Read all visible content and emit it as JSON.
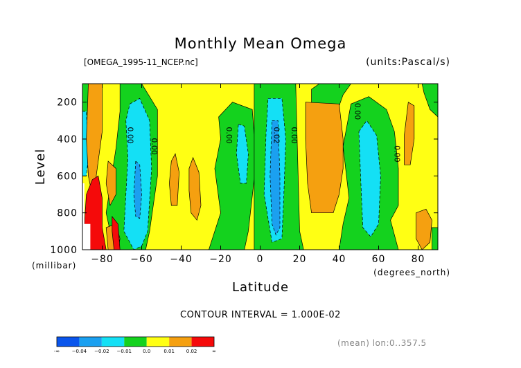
{
  "chart_data": {
    "type": "heatmap",
    "title": "Monthly Mean Omega",
    "file_label": "[OMEGA_1995-11_NCEP.nc]",
    "units_label": "(units:Pascal/s)",
    "xlabel": "Latitude",
    "x_units": "(degrees_north)",
    "ylabel": "Level",
    "y_units": "(millibar)",
    "xlim": [
      -90,
      90
    ],
    "ylim": [
      1000,
      100
    ],
    "x_ticks": [
      -80,
      -60,
      -40,
      -20,
      0,
      20,
      40,
      60,
      80
    ],
    "x_tick_labels": [
      "−80",
      "−60",
      "−40",
      "−20",
      "0",
      "20",
      "40",
      "60",
      "80"
    ],
    "y_ticks": [
      1000,
      800,
      600,
      400,
      200
    ],
    "y_tick_labels": [
      "1000",
      "800",
      "600",
      "400",
      "200"
    ],
    "contour_interval_text": "CONTOUR INTERVAL = 1.000E-02",
    "mean_note": "(mean) lon:0..357.5",
    "contour_labels": [
      {
        "text": "0.00",
        "lat": -67,
        "level": 380
      },
      {
        "text": "0.00",
        "lat": -55,
        "level": 440
      },
      {
        "text": "0.00",
        "lat": -17,
        "level": 380
      },
      {
        "text": "0.02",
        "lat": 7,
        "level": 380
      },
      {
        "text": "0.00",
        "lat": 16,
        "level": 380
      },
      {
        "text": "0.00",
        "lat": 48,
        "level": 250
      },
      {
        "text": "0.00",
        "lat": 68,
        "level": 480
      }
    ],
    "colorbar": {
      "colors": [
        "#0a55ec",
        "#1ba0f0",
        "#14e0f5",
        "#14d21e",
        "#ffff14",
        "#f5a010",
        "#f50a0a"
      ],
      "labels": [
        "-∞",
        "−0.04",
        "−0.02",
        "−0.01",
        "0.0",
        "0.01",
        "0.02",
        "∞"
      ]
    },
    "regions": [
      {
        "band": "positive",
        "color": "#ffff14",
        "poly": [
          [
            -90,
            100
          ],
          [
            90,
            100
          ],
          [
            90,
            1000
          ],
          [
            -90,
            1000
          ]
        ]
      },
      {
        "band": "zero",
        "color": "#14d21e",
        "poly": [
          [
            -90,
            100
          ],
          [
            -86,
            100
          ],
          [
            -86,
            380
          ],
          [
            -90,
            380
          ]
        ]
      },
      {
        "band": "zero",
        "color": "#14d21e",
        "poly": [
          [
            -71,
            100
          ],
          [
            -60,
            100
          ],
          [
            -52,
            240
          ],
          [
            -52,
            600
          ],
          [
            -56,
            900
          ],
          [
            -58,
            1000
          ],
          [
            -74,
            1000
          ],
          [
            -78,
            800
          ],
          [
            -73,
            450
          ],
          [
            -71,
            250
          ]
        ]
      },
      {
        "band": "zero",
        "color": "#14d21e",
        "poly": [
          [
            -21,
            280
          ],
          [
            -14,
            200
          ],
          [
            -4,
            240
          ],
          [
            -2,
            520
          ],
          [
            -6,
            900
          ],
          [
            -8,
            1000
          ],
          [
            -26,
            1000
          ],
          [
            -20,
            800
          ],
          [
            -23,
            560
          ],
          [
            -20,
            400
          ]
        ]
      },
      {
        "band": "zero",
        "color": "#14d21e",
        "poly": [
          [
            -3,
            100
          ],
          [
            18,
            100
          ],
          [
            19,
            500
          ],
          [
            20,
            900
          ],
          [
            22,
            1000
          ],
          [
            -3,
            1000
          ]
        ]
      },
      {
        "band": "zero",
        "color": "#14d21e",
        "poly": [
          [
            30,
            100
          ],
          [
            46,
            100
          ],
          [
            42,
            160
          ],
          [
            38,
            280
          ],
          [
            26,
            200
          ],
          [
            26,
            130
          ]
        ]
      },
      {
        "band": "zero",
        "color": "#14d21e",
        "poly": [
          [
            42,
            440
          ],
          [
            46,
            210
          ],
          [
            55,
            170
          ],
          [
            64,
            240
          ],
          [
            68,
            360
          ],
          [
            70,
            560
          ],
          [
            70,
            760
          ],
          [
            66,
            840
          ],
          [
            70,
            1000
          ],
          [
            40,
            1000
          ],
          [
            42,
            860
          ],
          [
            45,
            720
          ]
        ]
      },
      {
        "band": "zero",
        "color": "#14d21e",
        "poly": [
          [
            82,
            100
          ],
          [
            90,
            100
          ],
          [
            90,
            280
          ],
          [
            86,
            240
          ],
          [
            83,
            150
          ]
        ]
      },
      {
        "band": "zero",
        "color": "#14d21e",
        "poly": [
          [
            87,
            880
          ],
          [
            90,
            880
          ],
          [
            90,
            1000
          ],
          [
            87,
            1000
          ]
        ]
      },
      {
        "band": "weak-negative",
        "color": "#14e0f5",
        "poly": [
          [
            -90,
            250
          ],
          [
            -88,
            250
          ],
          [
            -87,
            500
          ],
          [
            -88,
            600
          ],
          [
            -90,
            600
          ]
        ]
      },
      {
        "band": "weak-negative",
        "color": "#14e0f5",
        "poly": [
          [
            -66,
            210
          ],
          [
            -61,
            180
          ],
          [
            -56,
            300
          ],
          [
            -55,
            560
          ],
          [
            -57,
            900
          ],
          [
            -60,
            980
          ],
          [
            -64,
            1000
          ],
          [
            -69,
            900
          ],
          [
            -67,
            500
          ],
          [
            -68,
            300
          ]
        ]
      },
      {
        "band": "weak-negative",
        "color": "#14e0f5",
        "poly": [
          [
            -11,
            320
          ],
          [
            -8,
            330
          ],
          [
            -6,
            480
          ],
          [
            -7,
            640
          ],
          [
            -10,
            640
          ],
          [
            -12,
            480
          ]
        ]
      },
      {
        "band": "weak-negative",
        "color": "#14e0f5",
        "poly": [
          [
            4,
            180
          ],
          [
            11,
            180
          ],
          [
            13,
            400
          ],
          [
            12,
            700
          ],
          [
            11,
            940
          ],
          [
            6,
            960
          ],
          [
            2,
            700
          ],
          [
            3,
            360
          ]
        ]
      },
      {
        "band": "weak-negative",
        "color": "#14e0f5",
        "poly": [
          [
            50,
            360
          ],
          [
            54,
            300
          ],
          [
            59,
            380
          ],
          [
            61,
            600
          ],
          [
            60,
            860
          ],
          [
            56,
            930
          ],
          [
            52,
            880
          ],
          [
            51,
            640
          ]
        ]
      },
      {
        "band": "moderate-negative",
        "color": "#1ba0f0",
        "poly": [
          [
            -63,
            520
          ],
          [
            -61,
            540
          ],
          [
            -60,
            700
          ],
          [
            -61,
            830
          ],
          [
            -63,
            820
          ],
          [
            -64,
            700
          ]
        ]
      },
      {
        "band": "moderate-negative",
        "color": "#1ba0f0",
        "poly": [
          [
            6,
            300
          ],
          [
            9,
            300
          ],
          [
            10,
            600
          ],
          [
            10,
            880
          ],
          [
            8,
            920
          ],
          [
            6,
            860
          ],
          [
            5,
            600
          ]
        ]
      },
      {
        "band": "weak-positive",
        "color": "#f5a010",
        "poly": [
          [
            -87,
            100
          ],
          [
            -80,
            100
          ],
          [
            -80,
            360
          ],
          [
            -83,
            600
          ],
          [
            -84,
            760
          ],
          [
            -87,
            600
          ],
          [
            -88,
            400
          ]
        ]
      },
      {
        "band": "weak-positive",
        "color": "#f5a010",
        "poly": [
          [
            -77,
            520
          ],
          [
            -73,
            560
          ],
          [
            -73,
            700
          ],
          [
            -76,
            760
          ],
          [
            -78,
            640
          ]
        ]
      },
      {
        "band": "weak-positive",
        "color": "#f5a010",
        "poly": [
          [
            -78,
            880
          ],
          [
            -73,
            860
          ],
          [
            -71,
            940
          ],
          [
            -72,
            1000
          ],
          [
            -77,
            1000
          ]
        ]
      },
      {
        "band": "weak-positive",
        "color": "#f5a010",
        "poly": [
          [
            -45,
            520
          ],
          [
            -43,
            480
          ],
          [
            -41,
            580
          ],
          [
            -42,
            760
          ],
          [
            -45,
            760
          ],
          [
            -46,
            640
          ]
        ]
      },
      {
        "band": "weak-positive",
        "color": "#f5a010",
        "poly": [
          [
            -36,
            560
          ],
          [
            -34,
            500
          ],
          [
            -31,
            580
          ],
          [
            -30,
            760
          ],
          [
            -32,
            840
          ],
          [
            -35,
            800
          ],
          [
            -36,
            680
          ]
        ]
      },
      {
        "band": "weak-positive",
        "color": "#f5a010",
        "poly": [
          [
            23,
            200
          ],
          [
            40,
            210
          ],
          [
            42,
            400
          ],
          [
            42,
            560
          ],
          [
            40,
            700
          ],
          [
            37,
            800
          ],
          [
            26,
            800
          ],
          [
            24,
            640
          ],
          [
            23,
            400
          ]
        ]
      },
      {
        "band": "weak-positive",
        "color": "#f5a010",
        "poly": [
          [
            75,
            200
          ],
          [
            78,
            220
          ],
          [
            78,
            400
          ],
          [
            76,
            540
          ],
          [
            73,
            540
          ],
          [
            73,
            380
          ]
        ]
      },
      {
        "band": "weak-positive",
        "color": "#f5a010",
        "poly": [
          [
            79,
            800
          ],
          [
            84,
            780
          ],
          [
            87,
            840
          ],
          [
            86,
            960
          ],
          [
            82,
            1000
          ],
          [
            79,
            940
          ]
        ]
      },
      {
        "band": "strong-positive",
        "color": "#f50a0a",
        "poly": [
          [
            -88,
            700
          ],
          [
            -85,
            620
          ],
          [
            -82,
            600
          ],
          [
            -80,
            720
          ],
          [
            -80,
            880
          ],
          [
            -78,
            1000
          ],
          [
            -88,
            1000
          ],
          [
            -89,
            860
          ]
        ]
      },
      {
        "band": "strong-positive",
        "color": "#f50a0a",
        "poly": [
          [
            -75,
            820
          ],
          [
            -72,
            860
          ],
          [
            -71,
            1000
          ],
          [
            -74,
            1000
          ],
          [
            -75,
            900
          ]
        ]
      },
      {
        "band": "missing",
        "color": "#ffffff",
        "poly": [
          [
            -90,
            640
          ],
          [
            -89,
            640
          ],
          [
            -89,
            860
          ],
          [
            -86,
            860
          ],
          [
            -86,
            1000
          ],
          [
            -90,
            1000
          ]
        ]
      }
    ]
  }
}
